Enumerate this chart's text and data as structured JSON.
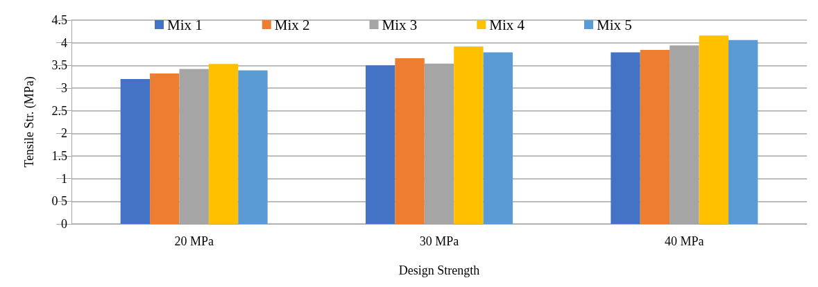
{
  "chart_data": {
    "type": "bar",
    "xlabel": "Design Strength",
    "ylabel": "Tensile Str. (MPa)",
    "categories": [
      "20 MPa",
      "30 MPa",
      "40 MPa"
    ],
    "series": [
      {
        "name": "Mix 1",
        "color": "#4472c4",
        "values": [
          3.2,
          3.5,
          3.79
        ]
      },
      {
        "name": "Mix 2",
        "color": "#ed7d31",
        "values": [
          3.32,
          3.66,
          3.84
        ]
      },
      {
        "name": "Mix 3",
        "color": "#a5a5a5",
        "values": [
          3.42,
          3.54,
          3.94
        ]
      },
      {
        "name": "Mix 4",
        "color": "#ffc000",
        "values": [
          3.53,
          3.92,
          4.16
        ]
      },
      {
        "name": "Mix 5",
        "color": "#5b9bd5",
        "values": [
          3.39,
          3.79,
          4.06
        ]
      }
    ],
    "ylim": [
      0,
      4.5
    ],
    "yticks": [
      0,
      {
        "value": 0.5,
        "label": "0 5"
      },
      1,
      1.5,
      2,
      2.5,
      3,
      3.5,
      4,
      4.5
    ],
    "grid": "y",
    "legend": "top"
  }
}
